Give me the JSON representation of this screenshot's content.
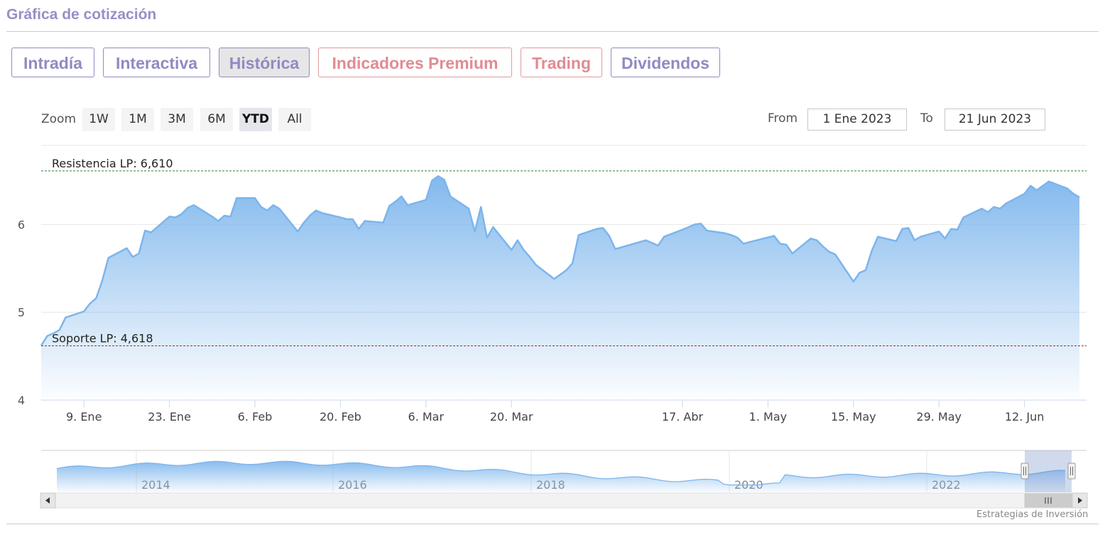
{
  "header": {
    "title": "Gráfica de cotización"
  },
  "tabs": [
    {
      "label": "Intradía",
      "style": "normal"
    },
    {
      "label": "Interactiva",
      "style": "normal"
    },
    {
      "label": "Histórica",
      "style": "active"
    },
    {
      "label": "Indicadores Premium",
      "style": "red"
    },
    {
      "label": "Trading",
      "style": "red"
    },
    {
      "label": "Dividendos",
      "style": "normal"
    }
  ],
  "range_selector": {
    "zoom_label": "Zoom",
    "buttons": [
      "1W",
      "1M",
      "3M",
      "6M",
      "YTD",
      "All"
    ],
    "selected": "YTD",
    "from_label": "From",
    "from_value": "1 Ene 2023",
    "to_label": "To",
    "to_value": "21 Jun 2023"
  },
  "colors": {
    "line": "#7cb5ec",
    "resistance": "#2e7d32",
    "support": "#a52a3a",
    "tab_purple": "#8f8bc2",
    "tab_red": "#e08c92"
  },
  "credit": "Estrategias de Inversión",
  "chart_data": {
    "type": "area",
    "ylim": [
      4,
      6.9
    ],
    "y_ticks": [
      "4",
      "5",
      "6"
    ],
    "x_ticks": [
      "9. Ene",
      "23. Ene",
      "6. Feb",
      "20. Feb",
      "6. Mar",
      "20. Mar",
      "17. Abr",
      "1. May",
      "15. May",
      "29. May",
      "12. Jun"
    ],
    "x_tick_dates": [
      "2023-01-09",
      "2023-01-23",
      "2023-02-06",
      "2023-02-20",
      "2023-03-06",
      "2023-03-20",
      "2023-04-17",
      "2023-05-01",
      "2023-05-15",
      "2023-05-29",
      "2023-06-12"
    ],
    "grid": true,
    "series": [
      {
        "x": [
          "2023-01-02",
          "2023-01-03",
          "2023-01-04",
          "2023-01-05",
          "2023-01-06",
          "2023-01-09",
          "2023-01-10",
          "2023-01-11",
          "2023-01-12",
          "2023-01-13",
          "2023-01-16",
          "2023-01-17",
          "2023-01-18",
          "2023-01-19",
          "2023-01-20",
          "2023-01-23",
          "2023-01-24",
          "2023-01-25",
          "2023-01-26",
          "2023-01-27",
          "2023-01-30",
          "2023-01-31",
          "2023-02-01",
          "2023-02-02",
          "2023-02-03",
          "2023-02-06",
          "2023-02-07",
          "2023-02-08",
          "2023-02-09",
          "2023-02-10",
          "2023-02-13",
          "2023-02-14",
          "2023-02-15",
          "2023-02-16",
          "2023-02-17",
          "2023-02-20",
          "2023-02-21",
          "2023-02-22",
          "2023-02-23",
          "2023-02-24",
          "2023-02-27",
          "2023-02-28",
          "2023-03-01",
          "2023-03-02",
          "2023-03-03",
          "2023-03-06",
          "2023-03-07",
          "2023-03-08",
          "2023-03-09",
          "2023-03-10",
          "2023-03-13",
          "2023-03-14",
          "2023-03-15",
          "2023-03-16",
          "2023-03-17",
          "2023-03-20",
          "2023-03-21",
          "2023-03-22",
          "2023-03-23",
          "2023-03-24",
          "2023-03-27",
          "2023-03-28",
          "2023-03-29",
          "2023-03-30",
          "2023-03-31",
          "2023-04-03",
          "2023-04-04",
          "2023-04-05",
          "2023-04-06",
          "2023-04-11",
          "2023-04-12",
          "2023-04-13",
          "2023-04-14",
          "2023-04-17",
          "2023-04-18",
          "2023-04-19",
          "2023-04-20",
          "2023-04-21",
          "2023-04-24",
          "2023-04-25",
          "2023-04-26",
          "2023-04-27",
          "2023-04-28",
          "2023-05-02",
          "2023-05-03",
          "2023-05-04",
          "2023-05-05",
          "2023-05-08",
          "2023-05-09",
          "2023-05-10",
          "2023-05-11",
          "2023-05-12",
          "2023-05-15",
          "2023-05-16",
          "2023-05-17",
          "2023-05-18",
          "2023-05-19",
          "2023-05-22",
          "2023-05-23",
          "2023-05-24",
          "2023-05-25",
          "2023-05-26",
          "2023-05-29",
          "2023-05-30",
          "2023-05-31",
          "2023-06-01",
          "2023-06-02",
          "2023-06-05",
          "2023-06-06",
          "2023-06-07",
          "2023-06-08",
          "2023-06-09",
          "2023-06-12",
          "2023-06-13",
          "2023-06-14",
          "2023-06-15",
          "2023-06-16",
          "2023-06-19",
          "2023-06-20",
          "2023-06-21"
        ],
        "values": [
          4.62,
          4.73,
          4.76,
          4.8,
          4.94,
          5.01,
          5.1,
          5.16,
          5.36,
          5.62,
          5.73,
          5.63,
          5.67,
          5.93,
          5.91,
          6.09,
          6.08,
          6.12,
          6.19,
          6.22,
          6.09,
          6.04,
          6.1,
          6.09,
          6.3,
          6.3,
          6.2,
          6.16,
          6.22,
          6.18,
          5.92,
          6.02,
          6.1,
          6.16,
          6.13,
          6.08,
          6.06,
          6.06,
          5.95,
          6.04,
          6.02,
          6.21,
          6.26,
          6.32,
          6.22,
          6.28,
          6.5,
          6.55,
          6.51,
          6.32,
          6.18,
          5.92,
          6.2,
          5.85,
          5.97,
          5.71,
          5.82,
          5.71,
          5.63,
          5.54,
          5.38,
          5.43,
          5.48,
          5.56,
          5.88,
          5.95,
          5.96,
          5.87,
          5.72,
          5.82,
          5.79,
          5.76,
          5.86,
          5.94,
          5.97,
          6.0,
          6.01,
          5.93,
          5.9,
          5.88,
          5.85,
          5.78,
          5.8,
          5.87,
          5.78,
          5.77,
          5.67,
          5.84,
          5.82,
          5.75,
          5.69,
          5.66,
          5.35,
          5.45,
          5.48,
          5.7,
          5.86,
          5.81,
          5.95,
          5.96,
          5.82,
          5.86,
          5.92,
          5.84,
          5.95,
          5.94,
          6.08,
          6.18,
          6.14,
          6.2,
          6.18,
          6.24,
          6.35,
          6.44,
          6.39,
          6.44,
          6.49,
          6.41,
          6.35,
          6.31
        ]
      }
    ],
    "plot_lines": [
      {
        "label": "Resistencia LP: 6,610",
        "value": 6.61
      },
      {
        "label": "Soporte LP: 4,618",
        "value": 4.618
      }
    ],
    "navigator": {
      "x_labels": [
        "2014",
        "2016",
        "2018",
        "2020",
        "2022"
      ]
    }
  }
}
